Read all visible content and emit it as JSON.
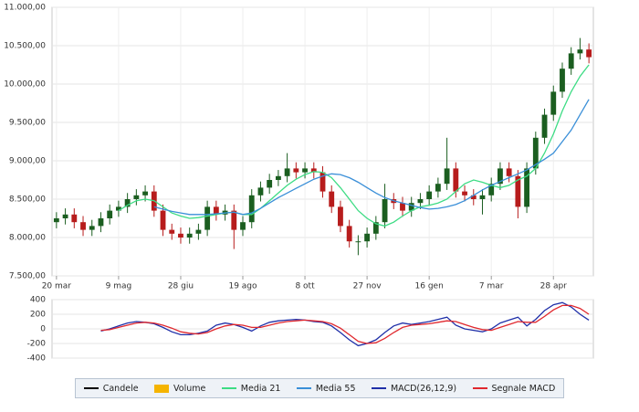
{
  "chart_data": [
    {
      "type": "candlestick",
      "categories": [
        "20 mar",
        null,
        null,
        null,
        null,
        null,
        null,
        "9 mag",
        null,
        null,
        null,
        null,
        null,
        null,
        "28 giu",
        null,
        null,
        null,
        null,
        null,
        null,
        "19 ago",
        null,
        null,
        null,
        null,
        null,
        null,
        "8 ott",
        null,
        null,
        null,
        null,
        null,
        null,
        "27 nov",
        null,
        null,
        null,
        null,
        null,
        null,
        "16 gen",
        null,
        null,
        null,
        null,
        null,
        null,
        "7 mar",
        null,
        null,
        null,
        null,
        null,
        null,
        "28 apr",
        null,
        null,
        null,
        null
      ],
      "candles": {
        "name": "Candele",
        "color": "#000000",
        "up_color": "#1b5e20",
        "down_color": "#b71c1c",
        "open": [
          8200,
          8250,
          8300,
          8200,
          8100,
          8150,
          8250,
          8350,
          8400,
          8500,
          8550,
          8600,
          8350,
          8100,
          8050,
          8000,
          8050,
          8100,
          8400,
          8300,
          8350,
          8100,
          8200,
          8550,
          8650,
          8750,
          8800,
          8900,
          8850,
          8900,
          8850,
          8600,
          8400,
          8150,
          7950,
          7950,
          8050,
          8200,
          8500,
          8450,
          8350,
          8450,
          8500,
          8600,
          8700,
          8900,
          8600,
          8550,
          8500,
          8550,
          8700,
          8900,
          8800,
          8400,
          8900,
          9300,
          9600,
          9900,
          10200,
          10400,
          10450
        ],
        "high": [
          8330,
          8380,
          8380,
          8280,
          8230,
          8330,
          8430,
          8480,
          8580,
          8630,
          8680,
          8680,
          8430,
          8180,
          8130,
          8130,
          8180,
          8480,
          8480,
          8430,
          8430,
          8280,
          8630,
          8730,
          8830,
          8880,
          9100,
          8980,
          8980,
          8980,
          8930,
          8680,
          8480,
          8230,
          8030,
          8130,
          8280,
          8700,
          8580,
          8530,
          8530,
          8580,
          8680,
          8780,
          9300,
          8980,
          8680,
          8630,
          8630,
          8780,
          8980,
          8980,
          8880,
          8980,
          9380,
          9680,
          9980,
          10280,
          10480,
          10600,
          10530
        ],
        "low": [
          8120,
          8170,
          8120,
          8020,
          8020,
          8070,
          8170,
          8270,
          8320,
          8420,
          8470,
          8270,
          8020,
          7970,
          7920,
          7920,
          7970,
          8020,
          8220,
          8220,
          7850,
          8020,
          8120,
          8470,
          8570,
          8670,
          8720,
          8770,
          8770,
          8770,
          8520,
          8320,
          8070,
          7870,
          7770,
          7870,
          7970,
          8120,
          8370,
          8270,
          8270,
          8370,
          8420,
          8520,
          8620,
          8520,
          8470,
          8420,
          8300,
          8470,
          8620,
          8720,
          8250,
          8320,
          8820,
          9220,
          9520,
          9820,
          10120,
          10320,
          10270
        ],
        "close": [
          8250,
          8300,
          8200,
          8100,
          8150,
          8250,
          8350,
          8400,
          8500,
          8550,
          8600,
          8350,
          8100,
          8050,
          8000,
          8050,
          8100,
          8400,
          8300,
          8350,
          8100,
          8200,
          8550,
          8650,
          8750,
          8800,
          8900,
          8850,
          8900,
          8850,
          8600,
          8400,
          8150,
          7950,
          7950,
          8050,
          8200,
          8500,
          8450,
          8350,
          8450,
          8500,
          8600,
          8700,
          8900,
          8600,
          8550,
          8500,
          8550,
          8700,
          8900,
          8800,
          8400,
          8900,
          9300,
          9600,
          9900,
          10200,
          10400,
          10450,
          10350
        ]
      },
      "volume": {
        "name": "Volume",
        "color": "#f5b400"
      },
      "series": [
        {
          "name": "Media 21",
          "color": "#3ddc84",
          "values": [
            null,
            null,
            null,
            null,
            null,
            null,
            null,
            8350,
            8420,
            8480,
            8500,
            8480,
            8400,
            8320,
            8280,
            8250,
            8260,
            8280,
            8300,
            8320,
            8330,
            8300,
            8300,
            8380,
            8480,
            8580,
            8680,
            8760,
            8820,
            8860,
            8850,
            8780,
            8650,
            8500,
            8350,
            8250,
            8180,
            8150,
            8200,
            8280,
            8350,
            8400,
            8420,
            8450,
            8500,
            8600,
            8700,
            8750,
            8720,
            8680,
            8650,
            8680,
            8750,
            8800,
            8900,
            9100,
            9350,
            9650,
            9900,
            10100,
            10250
          ]
        },
        {
          "name": "Media 55",
          "color": "#3a8fd8",
          "values": [
            null,
            null,
            null,
            null,
            null,
            null,
            null,
            null,
            null,
            null,
            null,
            8400,
            8370,
            8340,
            8320,
            8300,
            8300,
            8300,
            8310,
            8320,
            8330,
            8300,
            8320,
            8380,
            8450,
            8520,
            8580,
            8640,
            8700,
            8760,
            8800,
            8830,
            8820,
            8780,
            8720,
            8650,
            8580,
            8520,
            8480,
            8450,
            8420,
            8390,
            8370,
            8380,
            8400,
            8430,
            8480,
            8550,
            8620,
            8680,
            8730,
            8780,
            8830,
            8880,
            8950,
            9020,
            9100,
            9250,
            9400,
            9600,
            9800
          ]
        }
      ],
      "ylim": [
        7500,
        11000
      ],
      "yticks": [
        {
          "value": 7500,
          "label": "7.500,00"
        },
        {
          "value": 8000,
          "label": "8.000,00"
        },
        {
          "value": 8500,
          "label": "8.500,00"
        },
        {
          "value": 9000,
          "label": "9.000,00"
        },
        {
          "value": 9500,
          "label": "9.500,00"
        },
        {
          "value": 10000,
          "label": "10.000,00"
        },
        {
          "value": 10500,
          "label": "10.500,00"
        },
        {
          "value": 11000,
          "label": "11.000,00"
        }
      ],
      "grid": true
    },
    {
      "type": "line",
      "series": [
        {
          "name": "MACD(26,12,9)",
          "color": "#1f2fa8",
          "values": [
            null,
            null,
            null,
            null,
            null,
            -30,
            0,
            40,
            80,
            100,
            90,
            70,
            20,
            -40,
            -80,
            -80,
            -60,
            -30,
            50,
            80,
            60,
            20,
            -30,
            40,
            90,
            110,
            120,
            130,
            120,
            100,
            90,
            40,
            -50,
            -150,
            -230,
            -200,
            -150,
            -50,
            40,
            80,
            60,
            80,
            100,
            130,
            160,
            50,
            0,
            -20,
            -40,
            0,
            80,
            120,
            160,
            40,
            130,
            250,
            330,
            360,
            300,
            200,
            120
          ]
        },
        {
          "name": "Segnale MACD",
          "color": "#e0282e",
          "values": [
            null,
            null,
            null,
            null,
            null,
            -20,
            -10,
            20,
            50,
            80,
            90,
            80,
            50,
            10,
            -40,
            -60,
            -70,
            -50,
            0,
            40,
            60,
            50,
            20,
            20,
            50,
            80,
            100,
            110,
            120,
            110,
            100,
            70,
            10,
            -80,
            -170,
            -200,
            -190,
            -130,
            -50,
            20,
            50,
            60,
            70,
            90,
            110,
            100,
            60,
            20,
            -10,
            -20,
            20,
            60,
            100,
            90,
            90,
            170,
            260,
            320,
            320,
            280,
            200
          ]
        }
      ],
      "ylim": [
        -400,
        400
      ],
      "yticks": [
        -400,
        -200,
        0,
        200,
        400
      ],
      "grid": true
    }
  ]
}
